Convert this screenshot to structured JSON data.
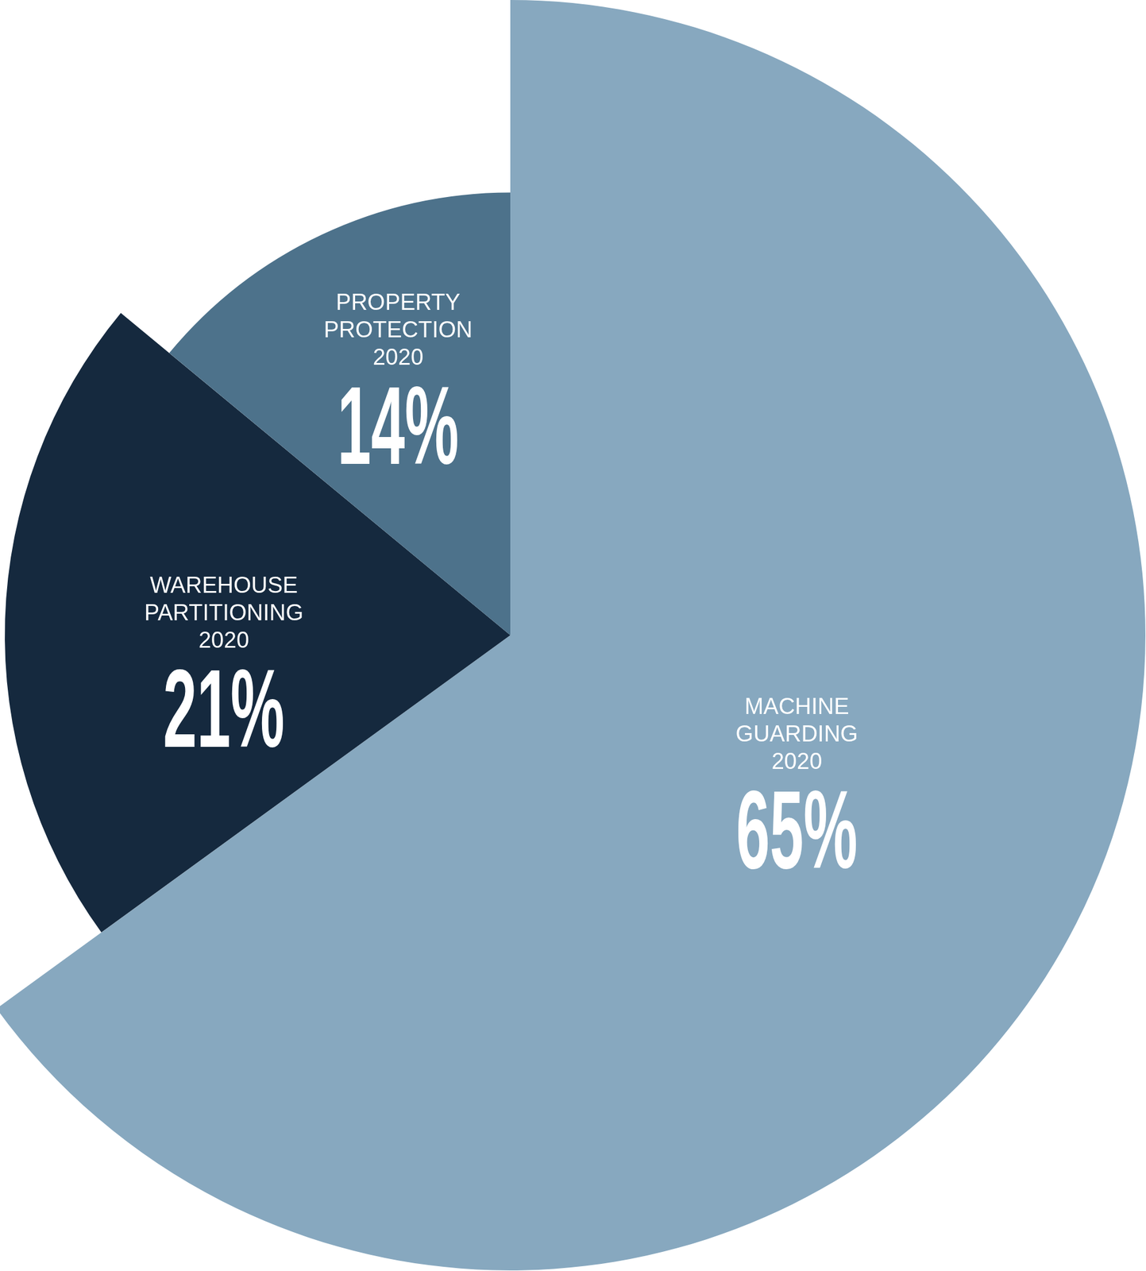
{
  "chart_data": {
    "type": "pie",
    "categories": [
      "MACHINE GUARDING 2020",
      "WAREHOUSE PARTITIONING 2020",
      "PROPERTY PROTECTION 2020"
    ],
    "values": [
      65,
      21,
      14
    ],
    "value_labels": [
      "65%",
      "21%",
      "14%"
    ],
    "colors": [
      "#87a8bf",
      "#15293e",
      "#4d728b"
    ],
    "data_labels": true
  }
}
